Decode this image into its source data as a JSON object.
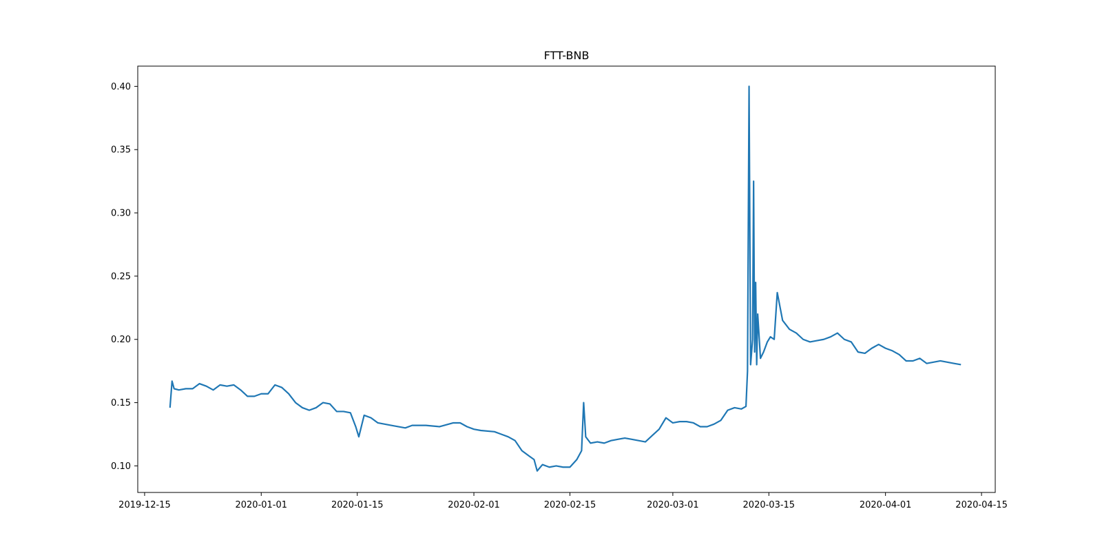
{
  "chart_data": {
    "type": "line",
    "title": "FTT-BNB",
    "xlabel": "",
    "ylabel": "",
    "x_axis": "date",
    "xlim": [
      "2019-12-14",
      "2020-04-17"
    ],
    "ylim": [
      0.079,
      0.416
    ],
    "x_ticks": [
      "2019-12-15",
      "2020-01-01",
      "2020-01-15",
      "2020-02-01",
      "2020-02-15",
      "2020-03-01",
      "2020-03-15",
      "2020-04-01",
      "2020-04-15"
    ],
    "y_ticks": [
      "0.10",
      "0.15",
      "0.20",
      "0.25",
      "0.30",
      "0.35",
      "0.40"
    ],
    "grid": false,
    "legend": "none",
    "series": [
      {
        "color": "#1f77b4",
        "points": [
          [
            "2019-12-19",
            0.146
          ],
          [
            "2019-12-19",
            0.167
          ],
          [
            "2019-12-19",
            0.161
          ],
          [
            "2019-12-20",
            0.16
          ],
          [
            "2019-12-21",
            0.161
          ],
          [
            "2019-12-22",
            0.161
          ],
          [
            "2019-12-23",
            0.165
          ],
          [
            "2019-12-24",
            0.163
          ],
          [
            "2019-12-25",
            0.16
          ],
          [
            "2019-12-26",
            0.164
          ],
          [
            "2019-12-27",
            0.163
          ],
          [
            "2019-12-28",
            0.164
          ],
          [
            "2019-12-29",
            0.16
          ],
          [
            "2019-12-30",
            0.155
          ],
          [
            "2019-12-31",
            0.155
          ],
          [
            "2020-01-01",
            0.157
          ],
          [
            "2020-01-02",
            0.157
          ],
          [
            "2020-01-03",
            0.164
          ],
          [
            "2020-01-04",
            0.162
          ],
          [
            "2020-01-05",
            0.157
          ],
          [
            "2020-01-06",
            0.15
          ],
          [
            "2020-01-07",
            0.146
          ],
          [
            "2020-01-08",
            0.144
          ],
          [
            "2020-01-09",
            0.146
          ],
          [
            "2020-01-10",
            0.15
          ],
          [
            "2020-01-11",
            0.149
          ],
          [
            "2020-01-12",
            0.143
          ],
          [
            "2020-01-13",
            0.143
          ],
          [
            "2020-01-14",
            0.142
          ],
          [
            "2020-01-15",
            0.131
          ],
          [
            "2020-01-15",
            0.123
          ],
          [
            "2020-01-16",
            0.14
          ],
          [
            "2020-01-17",
            0.138
          ],
          [
            "2020-01-18",
            0.134
          ],
          [
            "2020-01-19",
            0.133
          ],
          [
            "2020-01-20",
            0.132
          ],
          [
            "2020-01-22",
            0.13
          ],
          [
            "2020-01-23",
            0.132
          ],
          [
            "2020-01-25",
            0.132
          ],
          [
            "2020-01-27",
            0.131
          ],
          [
            "2020-01-29",
            0.134
          ],
          [
            "2020-01-30",
            0.134
          ],
          [
            "2020-01-31",
            0.131
          ],
          [
            "2020-02-01",
            0.129
          ],
          [
            "2020-02-02",
            0.128
          ],
          [
            "2020-02-04",
            0.127
          ],
          [
            "2020-02-05",
            0.125
          ],
          [
            "2020-02-06",
            0.123
          ],
          [
            "2020-02-07",
            0.12
          ],
          [
            "2020-02-08",
            0.112
          ],
          [
            "2020-02-09",
            0.108
          ],
          [
            "2020-02-10",
            0.105
          ],
          [
            "2020-02-10",
            0.096
          ],
          [
            "2020-02-11",
            0.101
          ],
          [
            "2020-02-12",
            0.099
          ],
          [
            "2020-02-13",
            0.1
          ],
          [
            "2020-02-14",
            0.099
          ],
          [
            "2020-02-15",
            0.099
          ],
          [
            "2020-02-16",
            0.105
          ],
          [
            "2020-02-17",
            0.112
          ],
          [
            "2020-02-17",
            0.15
          ],
          [
            "2020-02-17",
            0.123
          ],
          [
            "2020-02-18",
            0.118
          ],
          [
            "2020-02-19",
            0.119
          ],
          [
            "2020-02-20",
            0.118
          ],
          [
            "2020-02-21",
            0.12
          ],
          [
            "2020-02-22",
            0.121
          ],
          [
            "2020-02-23",
            0.122
          ],
          [
            "2020-02-24",
            0.121
          ],
          [
            "2020-02-25",
            0.12
          ],
          [
            "2020-02-26",
            0.119
          ],
          [
            "2020-02-27",
            0.124
          ],
          [
            "2020-02-28",
            0.129
          ],
          [
            "2020-02-29",
            0.138
          ],
          [
            "2020-03-01",
            0.134
          ],
          [
            "2020-03-02",
            0.135
          ],
          [
            "2020-03-03",
            0.135
          ],
          [
            "2020-03-04",
            0.134
          ],
          [
            "2020-03-05",
            0.131
          ],
          [
            "2020-03-06",
            0.131
          ],
          [
            "2020-03-07",
            0.133
          ],
          [
            "2020-03-08",
            0.136
          ],
          [
            "2020-03-09",
            0.144
          ],
          [
            "2020-03-10",
            0.146
          ],
          [
            "2020-03-11",
            0.145
          ],
          [
            "2020-03-12",
            0.147
          ],
          [
            "2020-03-12",
            0.175
          ],
          [
            "2020-03-12",
            0.4
          ],
          [
            "2020-03-12",
            0.18
          ],
          [
            "2020-03-13",
            0.2
          ],
          [
            "2020-03-13",
            0.325
          ],
          [
            "2020-03-13",
            0.19
          ],
          [
            "2020-03-13",
            0.245
          ],
          [
            "2020-03-13",
            0.18
          ],
          [
            "2020-03-13",
            0.22
          ],
          [
            "2020-03-14",
            0.185
          ],
          [
            "2020-03-14",
            0.19
          ],
          [
            "2020-03-15",
            0.198
          ],
          [
            "2020-03-15",
            0.202
          ],
          [
            "2020-03-16",
            0.2
          ],
          [
            "2020-03-16",
            0.237
          ],
          [
            "2020-03-17",
            0.215
          ],
          [
            "2020-03-18",
            0.208
          ],
          [
            "2020-03-19",
            0.205
          ],
          [
            "2020-03-20",
            0.2
          ],
          [
            "2020-03-21",
            0.198
          ],
          [
            "2020-03-22",
            0.199
          ],
          [
            "2020-03-23",
            0.2
          ],
          [
            "2020-03-24",
            0.202
          ],
          [
            "2020-03-25",
            0.205
          ],
          [
            "2020-03-26",
            0.2
          ],
          [
            "2020-03-27",
            0.198
          ],
          [
            "2020-03-28",
            0.19
          ],
          [
            "2020-03-29",
            0.189
          ],
          [
            "2020-03-30",
            0.193
          ],
          [
            "2020-03-31",
            0.196
          ],
          [
            "2020-04-01",
            0.193
          ],
          [
            "2020-04-02",
            0.191
          ],
          [
            "2020-04-03",
            0.188
          ],
          [
            "2020-04-04",
            0.183
          ],
          [
            "2020-04-05",
            0.183
          ],
          [
            "2020-04-06",
            0.185
          ],
          [
            "2020-04-07",
            0.181
          ],
          [
            "2020-04-08",
            0.182
          ],
          [
            "2020-04-09",
            0.183
          ],
          [
            "2020-04-10",
            0.182
          ],
          [
            "2020-04-11",
            0.181
          ],
          [
            "2020-04-12",
            0.18
          ]
        ]
      }
    ]
  }
}
